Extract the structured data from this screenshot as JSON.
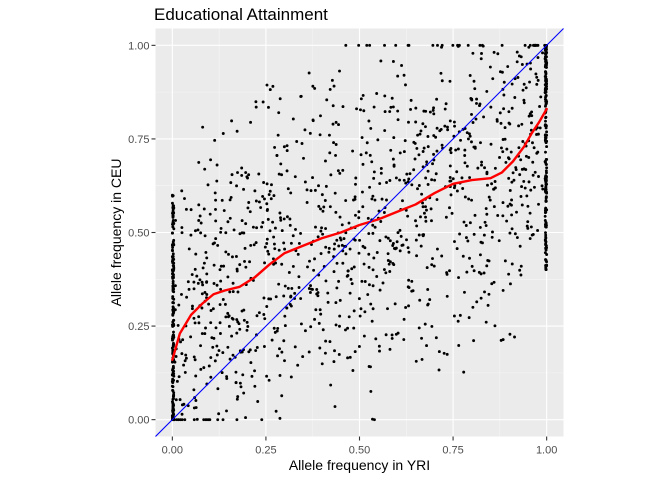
{
  "chart_data": {
    "type": "scatter",
    "title": "Educational Attainment",
    "xlabel": "Allele frequency in YRI",
    "ylabel": "Allele frequency in CEU",
    "xlim": [
      -0.045,
      1.045
    ],
    "ylim": [
      -0.045,
      1.045
    ],
    "x_ticks": [
      0,
      0.25,
      0.5,
      0.75,
      1
    ],
    "y_ticks": [
      0,
      0.25,
      0.5,
      0.75,
      1
    ],
    "x_tick_labels": [
      "0.00",
      "0.25",
      "0.50",
      "0.75",
      "1.00"
    ],
    "y_tick_labels": [
      "0.00",
      "0.25",
      "0.50",
      "0.75",
      "1.00"
    ],
    "grid": true,
    "background": "#ebebeb",
    "point_color": "#000000",
    "points_note": "~1500 SNP points; individual values not labeled",
    "diagonal_line": {
      "color": "#0000ff",
      "intercept": 0,
      "slope": 1
    },
    "smooth_curve": {
      "color": "#ff0000",
      "x": [
        0,
        0.02,
        0.05,
        0.08,
        0.11,
        0.14,
        0.18,
        0.22,
        0.26,
        0.3,
        0.35,
        0.4,
        0.45,
        0.5,
        0.55,
        0.6,
        0.65,
        0.7,
        0.75,
        0.8,
        0.85,
        0.88,
        0.91,
        0.94,
        0.96,
        0.98,
        1.0
      ],
      "y": [
        0.16,
        0.23,
        0.28,
        0.31,
        0.335,
        0.345,
        0.355,
        0.38,
        0.415,
        0.445,
        0.465,
        0.485,
        0.5,
        0.52,
        0.535,
        0.555,
        0.575,
        0.605,
        0.63,
        0.64,
        0.645,
        0.66,
        0.69,
        0.73,
        0.765,
        0.795,
        0.83
      ]
    }
  }
}
